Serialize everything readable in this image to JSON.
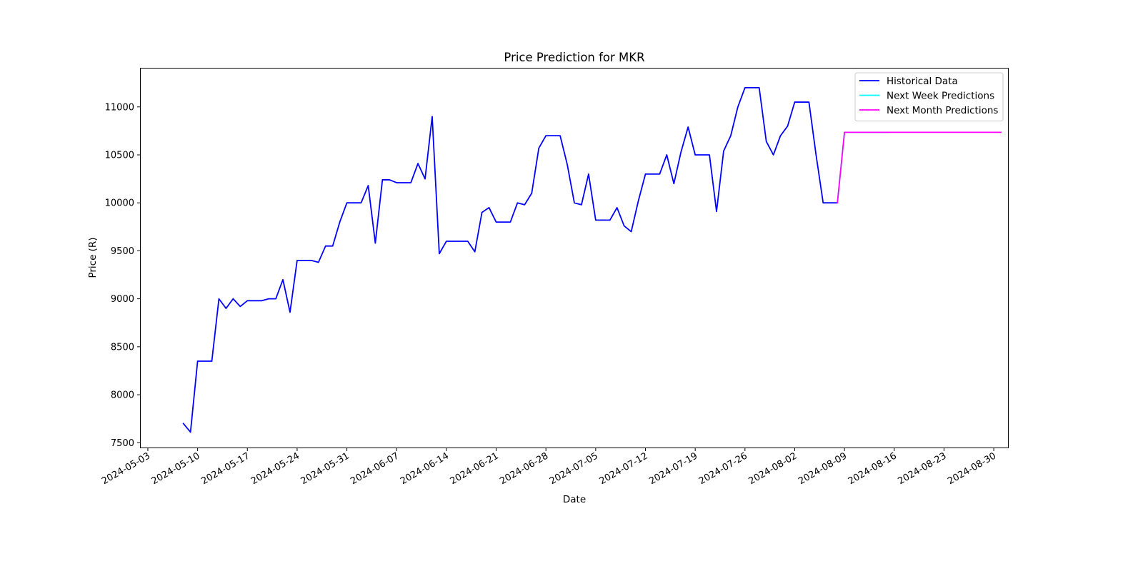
{
  "chart_data": {
    "type": "line",
    "title": "Price Prediction for MKR",
    "xlabel": "Date",
    "ylabel": "Price (R)",
    "xlim": [
      "2024-05-02",
      "2024-09-01"
    ],
    "ylim": [
      7450,
      11400
    ],
    "x_ticks": [
      "2024-05-03",
      "2024-05-10",
      "2024-05-17",
      "2024-05-24",
      "2024-05-31",
      "2024-06-07",
      "2024-06-14",
      "2024-06-21",
      "2024-06-28",
      "2024-07-05",
      "2024-07-12",
      "2024-07-19",
      "2024-07-26",
      "2024-08-02",
      "2024-08-09",
      "2024-08-16",
      "2024-08-23",
      "2024-08-30"
    ],
    "y_ticks": [
      7500,
      8000,
      8500,
      9000,
      9500,
      10000,
      10500,
      11000
    ],
    "grid": false,
    "legend_position": "top-right",
    "series": [
      {
        "name": "Historical Data",
        "color": "#0000ff",
        "x": [
          "2024-05-08",
          "2024-05-09",
          "2024-05-10",
          "2024-05-11",
          "2024-05-12",
          "2024-05-13",
          "2024-05-14",
          "2024-05-15",
          "2024-05-16",
          "2024-05-17",
          "2024-05-18",
          "2024-05-19",
          "2024-05-20",
          "2024-05-21",
          "2024-05-22",
          "2024-05-23",
          "2024-05-24",
          "2024-05-25",
          "2024-05-26",
          "2024-05-27",
          "2024-05-28",
          "2024-05-29",
          "2024-05-30",
          "2024-05-31",
          "2024-06-01",
          "2024-06-02",
          "2024-06-03",
          "2024-06-04",
          "2024-06-05",
          "2024-06-06",
          "2024-06-07",
          "2024-06-08",
          "2024-06-09",
          "2024-06-10",
          "2024-06-11",
          "2024-06-12",
          "2024-06-13",
          "2024-06-14",
          "2024-06-15",
          "2024-06-16",
          "2024-06-17",
          "2024-06-18",
          "2024-06-19",
          "2024-06-20",
          "2024-06-21",
          "2024-06-22",
          "2024-06-23",
          "2024-06-24",
          "2024-06-25",
          "2024-06-26",
          "2024-06-27",
          "2024-06-28",
          "2024-06-29",
          "2024-06-30",
          "2024-07-01",
          "2024-07-02",
          "2024-07-03",
          "2024-07-04",
          "2024-07-05",
          "2024-07-06",
          "2024-07-07",
          "2024-07-08",
          "2024-07-09",
          "2024-07-10",
          "2024-07-11",
          "2024-07-12",
          "2024-07-13",
          "2024-07-14",
          "2024-07-15",
          "2024-07-16",
          "2024-07-17",
          "2024-07-18",
          "2024-07-19",
          "2024-07-20",
          "2024-07-21",
          "2024-07-22",
          "2024-07-23",
          "2024-07-24",
          "2024-07-25",
          "2024-07-26",
          "2024-07-27",
          "2024-07-28",
          "2024-07-29",
          "2024-07-30",
          "2024-07-31",
          "2024-08-01",
          "2024-08-02",
          "2024-08-03",
          "2024-08-04",
          "2024-08-05",
          "2024-08-06",
          "2024-08-07",
          "2024-08-08"
        ],
        "values": [
          7700,
          7610,
          8350,
          8350,
          8350,
          9000,
          8900,
          9000,
          8920,
          8980,
          8980,
          8980,
          9000,
          9000,
          9200,
          8860,
          9400,
          9400,
          9400,
          9380,
          9550,
          9550,
          9800,
          10000,
          10000,
          10000,
          10180,
          9580,
          10240,
          10240,
          10210,
          10210,
          10210,
          10410,
          10250,
          10900,
          9470,
          9600,
          9600,
          9600,
          9600,
          9490,
          9900,
          9950,
          9800,
          9800,
          9800,
          10000,
          9980,
          10100,
          10570,
          10700,
          10700,
          10700,
          10400,
          10000,
          9980,
          10300,
          9820,
          9820,
          9820,
          9950,
          9760,
          9700,
          10020,
          10300,
          10300,
          10300,
          10500,
          10200,
          10530,
          10790,
          10500,
          10500,
          10500,
          9910,
          10540,
          10700,
          11000,
          11200,
          11200,
          11200,
          10640,
          10500,
          10700,
          10800,
          11050,
          11050,
          11050,
          10500,
          10000,
          10000,
          10000
        ]
      },
      {
        "name": "Next Week Predictions",
        "color": "#00ffff",
        "x": [
          "2024-08-08",
          "2024-08-09",
          "2024-08-10",
          "2024-08-11",
          "2024-08-12",
          "2024-08-13",
          "2024-08-14",
          "2024-08-15"
        ],
        "values": [
          10000,
          10735,
          10735,
          10735,
          10735,
          10735,
          10735,
          10735
        ]
      },
      {
        "name": "Next Month Predictions",
        "color": "#ff00ff",
        "x": [
          "2024-08-08",
          "2024-08-09",
          "2024-08-31"
        ],
        "values": [
          10000,
          10735,
          10735
        ]
      }
    ]
  }
}
